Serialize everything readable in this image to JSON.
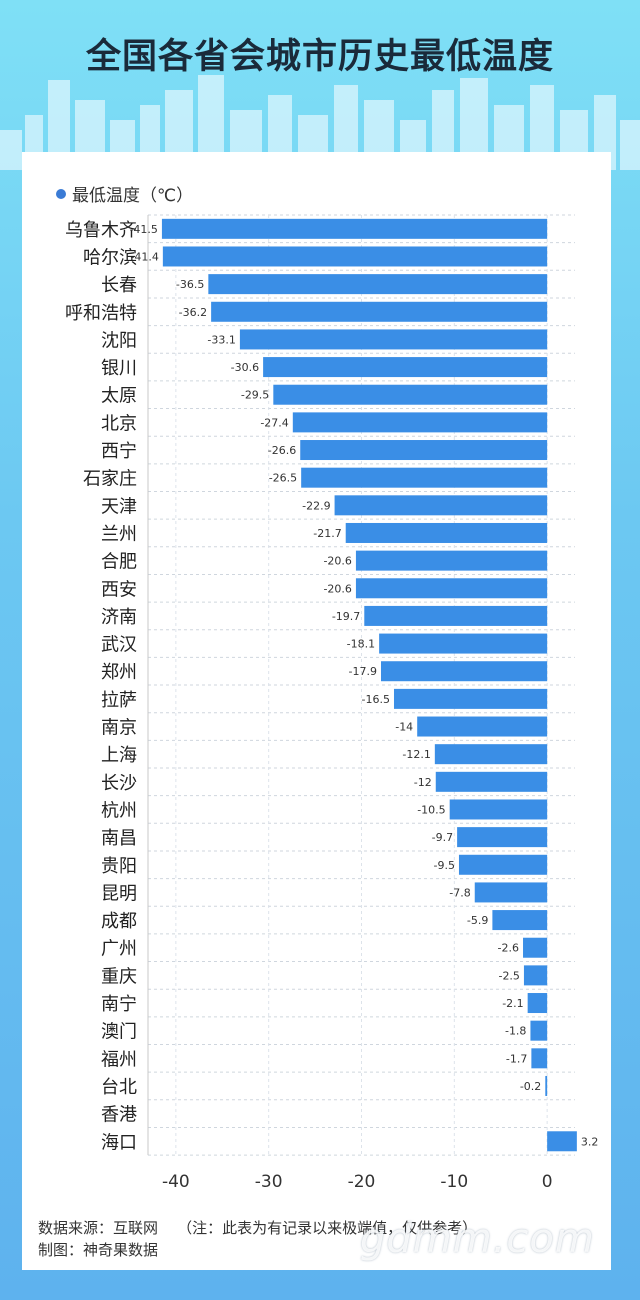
{
  "title": "全国各省会城市历史最低温度",
  "legend_label": "最低温度（℃）",
  "colors": {
    "bar": "#3a8ee6",
    "accent": "#3a7bd5"
  },
  "chart_data": {
    "type": "bar",
    "orientation": "horizontal",
    "categories": [
      "乌鲁木齐",
      "哈尔滨",
      "长春",
      "呼和浩特",
      "沈阳",
      "银川",
      "太原",
      "北京",
      "西宁",
      "石家庄",
      "天津",
      "兰州",
      "合肥",
      "西安",
      "济南",
      "武汉",
      "郑州",
      "拉萨",
      "南京",
      "上海",
      "长沙",
      "杭州",
      "南昌",
      "贵阳",
      "昆明",
      "成都",
      "广州",
      "重庆",
      "南宁",
      "澳门",
      "福州",
      "台北",
      "香港",
      "海口"
    ],
    "series": [
      {
        "name": "最低温度（℃）",
        "values": [
          -41.5,
          -41.4,
          -36.5,
          -36.2,
          -33.1,
          -30.6,
          -29.5,
          -27.4,
          -26.6,
          -26.5,
          -22.9,
          -21.7,
          -20.6,
          -20.6,
          -19.7,
          -18.1,
          -17.9,
          -16.5,
          -14,
          -12.1,
          -12,
          -10.5,
          -9.7,
          -9.5,
          -7.8,
          -5.9,
          -2.6,
          -2.5,
          -2.1,
          -1.8,
          -1.7,
          -0.2,
          null,
          3.2
        ]
      }
    ],
    "xlim": [
      -43,
      3
    ],
    "xticks": [
      -40,
      -30,
      -20,
      -10,
      0
    ],
    "grid": true,
    "legend_position": "top-left"
  },
  "footer": {
    "source": "数据来源：互联网",
    "note": "（注：此表为有记录以来极端值，仅供参考）",
    "maker": "制图：神奇果数据"
  },
  "watermark": "gdmm.com"
}
